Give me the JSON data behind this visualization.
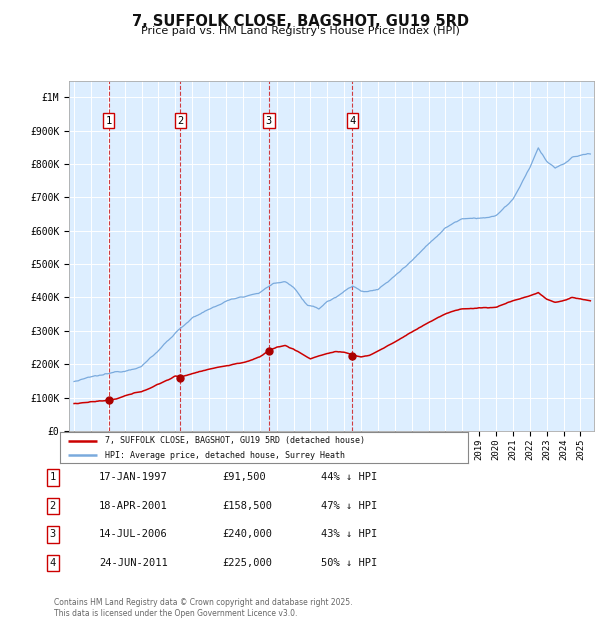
{
  "title": "7, SUFFOLK CLOSE, BAGSHOT, GU19 5RD",
  "subtitle": "Price paid vs. HM Land Registry's House Price Index (HPI)",
  "background_color": "#ffffff",
  "plot_bg_color": "#ddeeff",
  "grid_color": "#ffffff",
  "sale_dates": [
    1997.04,
    2001.3,
    2006.54,
    2011.48
  ],
  "sale_prices": [
    91500,
    158500,
    240000,
    225000
  ],
  "sale_labels": [
    "1",
    "2",
    "3",
    "4"
  ],
  "legend_red": "7, SUFFOLK CLOSE, BAGSHOT, GU19 5RD (detached house)",
  "legend_blue": "HPI: Average price, detached house, Surrey Heath",
  "table_entries": [
    [
      "1",
      "17-JAN-1997",
      "£91,500",
      "44% ↓ HPI"
    ],
    [
      "2",
      "18-APR-2001",
      "£158,500",
      "47% ↓ HPI"
    ],
    [
      "3",
      "14-JUL-2006",
      "£240,000",
      "43% ↓ HPI"
    ],
    [
      "4",
      "24-JUN-2011",
      "£225,000",
      "50% ↓ HPI"
    ]
  ],
  "footnote": "Contains HM Land Registry data © Crown copyright and database right 2025.\nThis data is licensed under the Open Government Licence v3.0.",
  "ylim": [
    0,
    1050000
  ],
  "yticks": [
    0,
    100000,
    200000,
    300000,
    400000,
    500000,
    600000,
    700000,
    800000,
    900000,
    1000000
  ],
  "ytick_labels": [
    "£0",
    "£100K",
    "£200K",
    "£300K",
    "£400K",
    "£500K",
    "£600K",
    "£700K",
    "£800K",
    "£900K",
    "£1M"
  ],
  "red_line_color": "#cc0000",
  "blue_line_color": "#7aaadd",
  "sale_marker_color": "#aa0000",
  "xlim_left": 1994.7,
  "xlim_right": 2025.8
}
